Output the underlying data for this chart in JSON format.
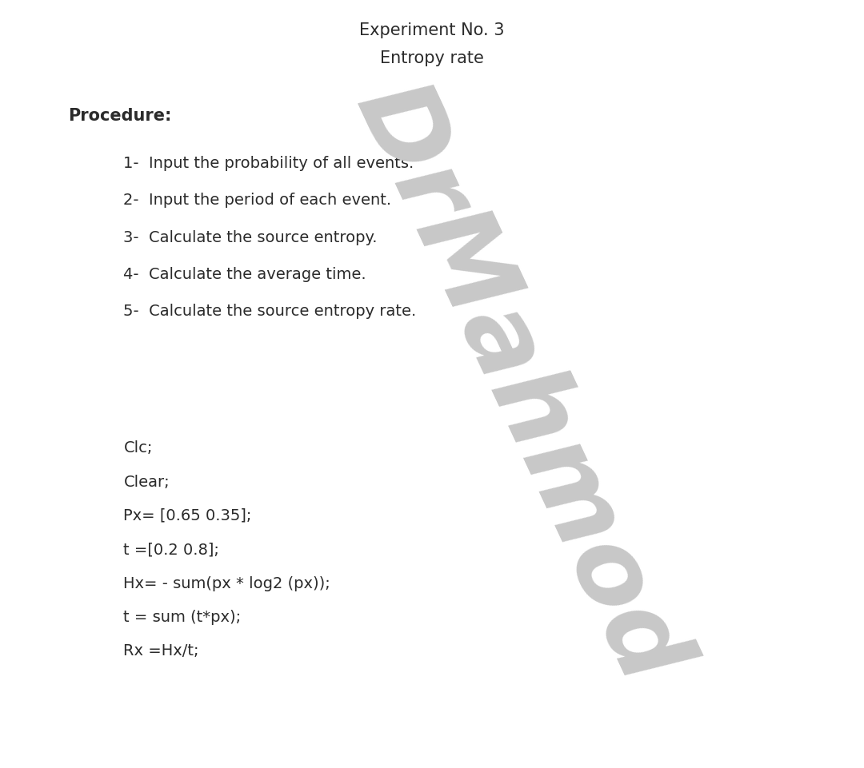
{
  "title1": "Experiment No. 3",
  "title2": "Entropy rate",
  "procedure_label": "Procedure:",
  "steps": [
    "1-  Input the probability of all events.",
    "2-  Input the period of each event.",
    "3-  Calculate the source entropy.",
    "4-  Calculate the average time.",
    "5-  Calculate the source entropy rate."
  ],
  "code_lines": [
    "Clc;",
    "Clear;",
    "Px= [0.65 0.35];",
    "t =[0.2 0.8];",
    "Hx= - sum(px * log2 (px));",
    "t = sum (t*px);",
    "Rx =Hx/t;"
  ],
  "watermark": "DrMahmod",
  "bg_color": "#ffffff",
  "text_color": "#2b2b2b",
  "watermark_color": "#c8c8c8",
  "title_fontsize": 15,
  "procedure_fontsize": 15,
  "step_fontsize": 14,
  "code_fontsize": 14,
  "watermark_fontsize": 95
}
